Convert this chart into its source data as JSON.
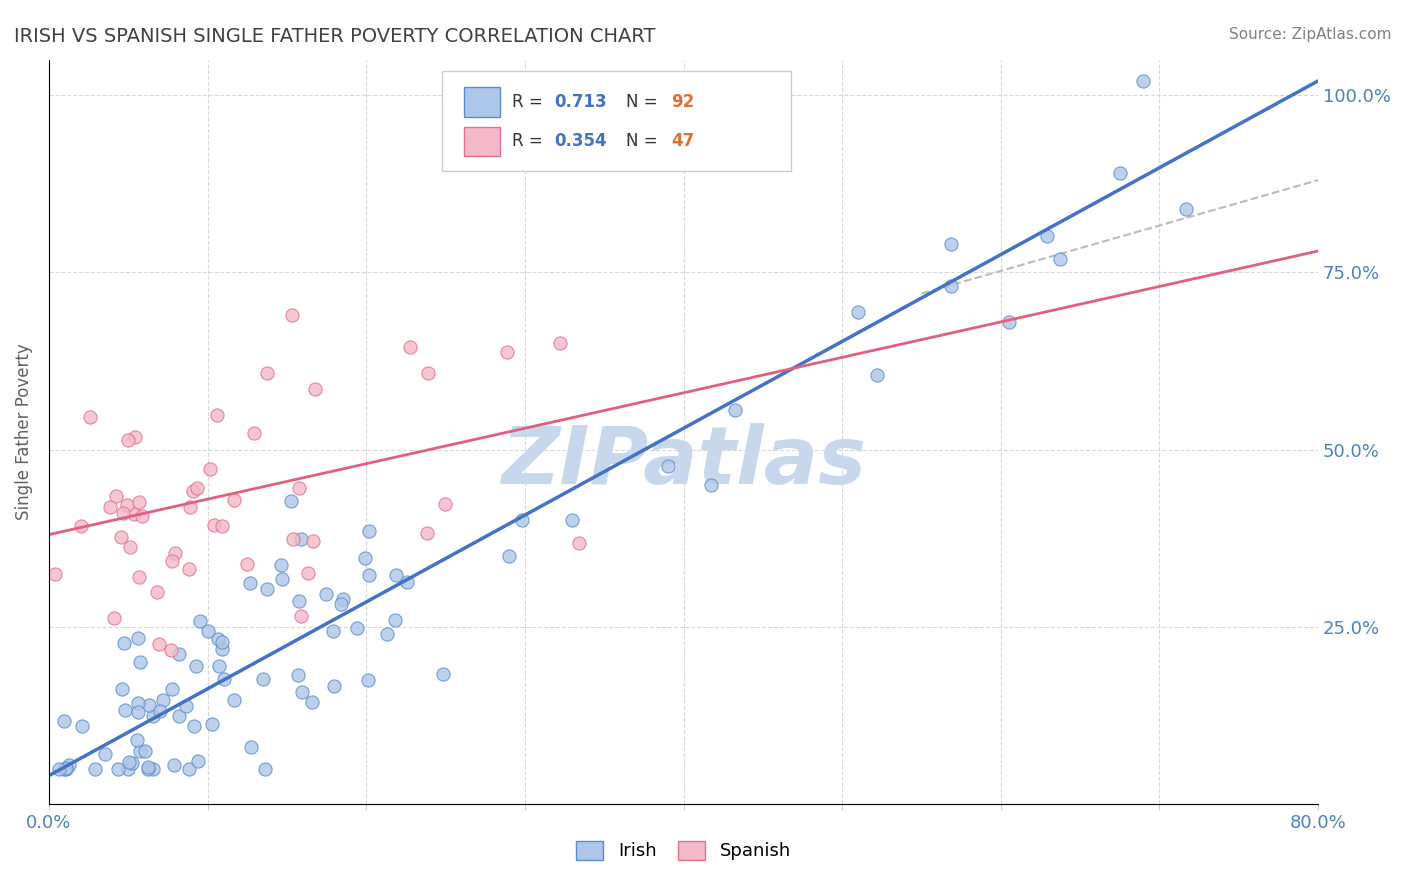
{
  "title": "IRISH VS SPANISH SINGLE FATHER POVERTY CORRELATION CHART",
  "source_text": "Source: ZipAtlas.com",
  "ylabel": "Single Father Poverty",
  "ylabel_right_ticks": [
    "25.0%",
    "50.0%",
    "75.0%",
    "100.0%"
  ],
  "ylabel_right_values": [
    0.25,
    0.5,
    0.75,
    1.0
  ],
  "legend_irish_R": "0.713",
  "legend_irish_N": "92",
  "legend_spanish_R": "0.354",
  "legend_spanish_N": "47",
  "irish_fill_color": "#aec6e8",
  "spanish_fill_color": "#f4b8c8",
  "irish_edge_color": "#5b8dc8",
  "spanish_edge_color": "#e07090",
  "irish_line_color": "#4472c4",
  "spanish_line_color": "#e06080",
  "dashed_line_color": "#bbbbbb",
  "watermark_text": "ZIPatlas",
  "watermark_color": "#c8d8ec",
  "background_color": "#ffffff",
  "grid_color": "#d8d8d8",
  "title_color": "#404040",
  "axis_label_color": "#5080c0",
  "legend_R_color": "#4472c4",
  "legend_N_color": "#e07030",
  "xmin": 0.0,
  "xmax": 0.8,
  "ymin": 0.0,
  "ymax": 1.05,
  "irish_line_x0": 0.0,
  "irish_line_y0": 0.04,
  "irish_line_x1": 0.8,
  "irish_line_y1": 1.02,
  "spanish_line_x0": 0.0,
  "spanish_line_y0": 0.38,
  "spanish_line_x1": 0.8,
  "spanish_line_y1": 0.78,
  "dashed_line_x0": 0.55,
  "dashed_line_y0": 0.72,
  "dashed_line_x1": 0.8,
  "dashed_line_y1": 0.88
}
